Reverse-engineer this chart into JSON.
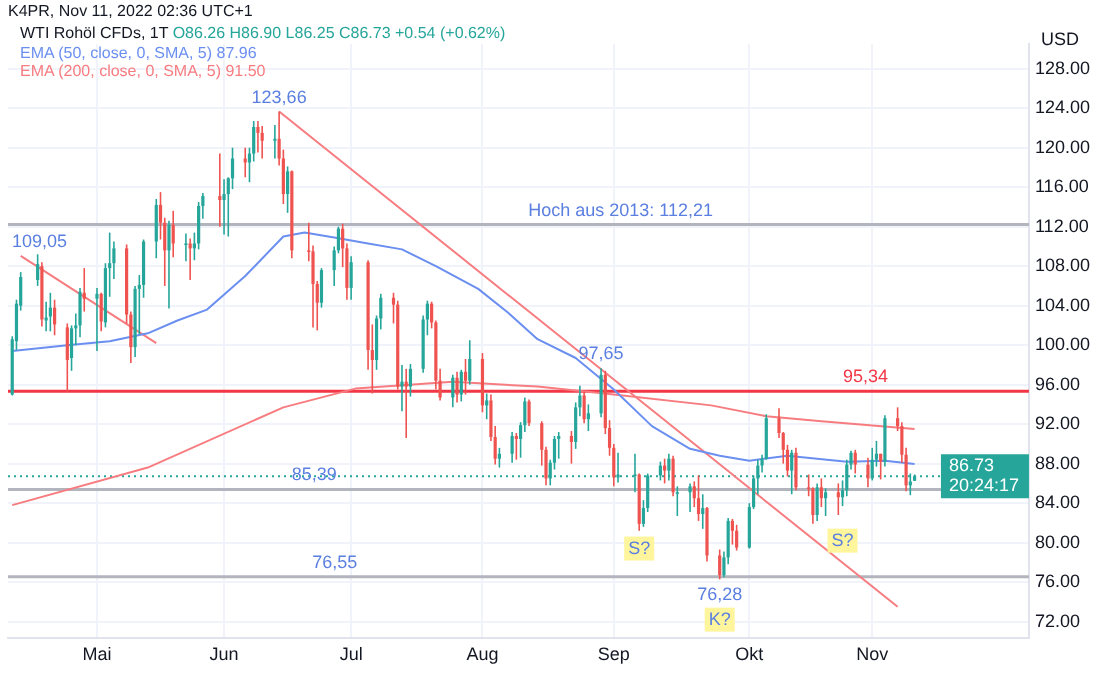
{
  "chart_data": {
    "type": "candlestick",
    "title": "WTI Rohöl CFDs, 1T",
    "subtitle": "O86.26 H86.90 L86.25 C86.73 +0.54 (+0.62%)",
    "ylabel": "USD",
    "xlim": [
      "2022-04-11",
      "2022-12-08"
    ],
    "xticks": [
      {
        "value": "2022-05-02",
        "label": "Mai"
      },
      {
        "value": "2022-06-01",
        "label": "Jun"
      },
      {
        "value": "2022-07-01",
        "label": "Jul"
      },
      {
        "value": "2022-08-01",
        "label": "Aug"
      },
      {
        "value": "2022-09-01",
        "label": "Sep"
      },
      {
        "value": "2022-10-03",
        "label": "Okt"
      },
      {
        "value": "2022-11-01",
        "label": "Nov"
      }
    ],
    "ylim": [
      70.3,
      130.5
    ],
    "yticks": [
      {
        "value": 72,
        "label": "72.00"
      },
      {
        "value": 76,
        "label": "76.00"
      },
      {
        "value": 80,
        "label": "80.00"
      },
      {
        "value": 84,
        "label": "84.00"
      },
      {
        "value": 88,
        "label": "88.00"
      },
      {
        "value": 92,
        "label": "92.00"
      },
      {
        "value": 96,
        "label": "96.00"
      },
      {
        "value": 100,
        "label": "100.00"
      },
      {
        "value": 104,
        "label": "104.00"
      },
      {
        "value": 108,
        "label": "108.00"
      },
      {
        "value": 112,
        "label": "112.00"
      },
      {
        "value": 116,
        "label": "116.00"
      },
      {
        "value": 120,
        "label": "120.00"
      },
      {
        "value": 124,
        "label": "124.00"
      },
      {
        "value": 128,
        "label": "128.00"
      }
    ],
    "grid": true,
    "legend": "top left",
    "series": [
      {
        "type": "line",
        "name": "EMA (50, close, 0, SMA, 5) 87.96",
        "color": "#6b8ff0",
        "x": [
          "2022-04-12",
          "2022-04-25",
          "2022-05-05",
          "2022-05-14",
          "2022-05-21",
          "2022-05-28",
          "2022-06-06",
          "2022-06-15",
          "2022-06-20",
          "2022-06-27",
          "2022-07-05",
          "2022-07-13",
          "2022-07-21",
          "2022-07-31",
          "2022-08-07",
          "2022-08-14",
          "2022-08-23",
          "2022-09-01",
          "2022-09-10",
          "2022-09-19",
          "2022-09-26",
          "2022-10-03",
          "2022-10-12",
          "2022-10-19",
          "2022-10-26",
          "2022-11-04",
          "2022-11-11"
        ],
        "values": [
          99.4,
          100.0,
          100.4,
          101.2,
          102.5,
          103.6,
          107.0,
          111.0,
          111.4,
          110.9,
          110.3,
          109.7,
          108.0,
          105.7,
          103.3,
          100.6,
          98.7,
          95.5,
          91.8,
          89.5,
          88.8,
          88.3,
          88.8,
          88.5,
          88.2,
          88.3,
          87.96
        ]
      },
      {
        "type": "line",
        "name": "EMA (200, close, 0, SMA, 5) 91.50",
        "color": "#f77c80",
        "x": [
          "2022-04-12",
          "2022-05-14",
          "2022-06-15",
          "2022-07-02",
          "2022-07-25",
          "2022-08-14",
          "2022-09-01",
          "2022-09-24",
          "2022-10-07",
          "2022-10-20",
          "2022-11-11"
        ],
        "values": [
          83.8,
          87.6,
          93.7,
          95.6,
          96.3,
          95.8,
          95.0,
          93.9,
          92.8,
          92.3,
          91.5
        ]
      },
      {
        "type": "line",
        "color": "#f77c80",
        "x": [
          "2022-04-14",
          "2022-05-16"
        ],
        "values": [
          109.05,
          100.2
        ]
      },
      {
        "type": "line",
        "color": "#f77c80",
        "x": [
          "2022-06-14",
          "2022-11-07"
        ],
        "values": [
          123.66,
          73.5
        ]
      }
    ],
    "x": [
      "2022-04-12",
      "2022-04-13",
      "2022-04-14",
      "2022-04-18",
      "2022-04-19",
      "2022-04-20",
      "2022-04-21",
      "2022-04-22",
      "2022-04-25",
      "2022-04-26",
      "2022-04-27",
      "2022-04-28",
      "2022-04-29",
      "2022-05-02",
      "2022-05-03",
      "2022-05-04",
      "2022-05-05",
      "2022-05-06",
      "2022-05-09",
      "2022-05-10",
      "2022-05-11",
      "2022-05-12",
      "2022-05-13",
      "2022-05-16",
      "2022-05-17",
      "2022-05-18",
      "2022-05-19",
      "2022-05-20",
      "2022-05-23",
      "2022-05-24",
      "2022-05-25",
      "2022-05-26",
      "2022-05-27",
      "2022-05-31",
      "2022-06-01",
      "2022-06-02",
      "2022-06-03",
      "2022-06-06",
      "2022-06-07",
      "2022-06-08",
      "2022-06-09",
      "2022-06-10",
      "2022-06-13",
      "2022-06-14",
      "2022-06-15",
      "2022-06-16",
      "2022-06-17",
      "2022-06-21",
      "2022-06-22",
      "2022-06-23",
      "2022-06-24",
      "2022-06-27",
      "2022-06-28",
      "2022-06-29",
      "2022-06-30",
      "2022-07-01",
      "2022-07-05",
      "2022-07-06",
      "2022-07-07",
      "2022-07-08",
      "2022-07-11",
      "2022-07-12",
      "2022-07-13",
      "2022-07-14",
      "2022-07-15",
      "2022-07-18",
      "2022-07-19",
      "2022-07-20",
      "2022-07-21",
      "2022-07-22",
      "2022-07-25",
      "2022-07-26",
      "2022-07-27",
      "2022-07-28",
      "2022-07-29",
      "2022-08-01",
      "2022-08-02",
      "2022-08-03",
      "2022-08-04",
      "2022-08-05",
      "2022-08-08",
      "2022-08-09",
      "2022-08-10",
      "2022-08-11",
      "2022-08-12",
      "2022-08-15",
      "2022-08-16",
      "2022-08-17",
      "2022-08-18",
      "2022-08-19",
      "2022-08-22",
      "2022-08-23",
      "2022-08-24",
      "2022-08-25",
      "2022-08-26",
      "2022-08-29",
      "2022-08-30",
      "2022-08-31",
      "2022-09-01",
      "2022-09-02",
      "2022-09-06",
      "2022-09-07",
      "2022-09-08",
      "2022-09-09",
      "2022-09-12",
      "2022-09-13",
      "2022-09-14",
      "2022-09-15",
      "2022-09-16",
      "2022-09-19",
      "2022-09-20",
      "2022-09-21",
      "2022-09-22",
      "2022-09-23",
      "2022-09-26",
      "2022-09-27",
      "2022-09-28",
      "2022-09-29",
      "2022-09-30",
      "2022-10-03",
      "2022-10-04",
      "2022-10-05",
      "2022-10-06",
      "2022-10-07",
      "2022-10-10",
      "2022-10-11",
      "2022-10-12",
      "2022-10-13",
      "2022-10-14",
      "2022-10-17",
      "2022-10-18",
      "2022-10-19",
      "2022-10-20",
      "2022-10-21",
      "2022-10-24",
      "2022-10-25",
      "2022-10-26",
      "2022-10-27",
      "2022-10-28",
      "2022-10-31",
      "2022-11-01",
      "2022-11-02",
      "2022-11-03",
      "2022-11-04",
      "2022-11-07",
      "2022-11-08",
      "2022-11-09",
      "2022-11-10",
      "2022-11-11"
    ],
    "ohlc": [
      [
        95.0,
        100.9,
        94.9,
        100.6
      ],
      [
        100.4,
        104.6,
        99.5,
        104.2
      ],
      [
        104.0,
        107.4,
        103.5,
        106.9
      ],
      [
        106.6,
        109.2,
        106.0,
        108.2
      ],
      [
        108.0,
        108.4,
        101.9,
        102.6
      ],
      [
        102.5,
        104.4,
        101.4,
        102.8
      ],
      [
        102.9,
        105.3,
        101.4,
        103.8
      ],
      [
        103.8,
        104.6,
        101.0,
        102.1
      ],
      [
        101.8,
        102.2,
        95.3,
        98.5
      ],
      [
        98.7,
        102.0,
        97.4,
        101.7
      ],
      [
        101.7,
        103.2,
        100.0,
        102.0
      ],
      [
        102.0,
        105.8,
        100.8,
        105.4
      ],
      [
        105.3,
        107.8,
        103.4,
        104.7
      ],
      [
        104.7,
        105.8,
        99.4,
        105.2
      ],
      [
        105.2,
        105.3,
        101.4,
        102.4
      ],
      [
        102.3,
        108.3,
        101.8,
        107.8
      ],
      [
        107.8,
        111.4,
        104.9,
        108.3
      ],
      [
        108.3,
        110.5,
        106.7,
        109.8
      ],
      [
        109.8,
        110.2,
        102.2,
        103.1
      ],
      [
        103.1,
        103.4,
        98.2,
        99.8
      ],
      [
        99.8,
        106.0,
        98.8,
        105.7
      ],
      [
        105.7,
        107.1,
        101.1,
        106.1
      ],
      [
        106.1,
        110.7,
        104.8,
        110.5
      ],
      [
        110.5,
        114.8,
        108.8,
        114.2
      ],
      [
        114.2,
        115.5,
        110.7,
        112.4
      ],
      [
        112.4,
        112.9,
        106.0,
        109.6
      ],
      [
        109.6,
        112.6,
        103.7,
        112.2
      ],
      [
        112.2,
        113.6,
        108.9,
        110.3
      ],
      [
        110.3,
        111.3,
        108.5,
        110.3
      ],
      [
        110.3,
        110.8,
        106.6,
        109.8
      ],
      [
        109.8,
        111.4,
        108.6,
        110.3
      ],
      [
        110.3,
        114.5,
        109.7,
        114.1
      ],
      [
        114.1,
        115.4,
        112.8,
        115.1
      ],
      [
        115.1,
        119.4,
        112.0,
        114.7
      ],
      [
        114.7,
        116.8,
        111.2,
        115.3
      ],
      [
        115.3,
        117.0,
        111.0,
        116.9
      ],
      [
        116.9,
        120.0,
        115.8,
        118.9
      ],
      [
        118.9,
        120.0,
        117.0,
        118.5
      ],
      [
        118.5,
        120.0,
        116.5,
        119.4
      ],
      [
        119.4,
        122.7,
        118.6,
        122.1
      ],
      [
        122.1,
        122.7,
        119.5,
        121.5
      ],
      [
        121.5,
        122.2,
        118.9,
        120.7
      ],
      [
        120.7,
        122.3,
        118.9,
        120.9
      ],
      [
        120.9,
        123.66,
        118.2,
        118.9
      ],
      [
        118.9,
        119.8,
        114.3,
        115.3
      ],
      [
        115.3,
        118.1,
        113.4,
        117.6
      ],
      [
        117.6,
        117.7,
        108.8,
        109.6
      ],
      [
        109.6,
        112.4,
        108.5,
        109.5
      ],
      [
        109.5,
        110.1,
        101.8,
        106.2
      ],
      [
        106.2,
        106.5,
        101.5,
        104.3
      ],
      [
        104.3,
        107.8,
        103.8,
        107.6
      ],
      [
        107.6,
        110.0,
        106.0,
        109.6
      ],
      [
        109.6,
        112.0,
        109.3,
        111.8
      ],
      [
        111.8,
        112.3,
        107.9,
        109.8
      ],
      [
        109.8,
        110.3,
        104.6,
        105.8
      ],
      [
        105.8,
        109.0,
        104.6,
        108.4
      ],
      [
        108.4,
        108.6,
        97.5,
        99.5
      ],
      [
        99.5,
        102.1,
        95.1,
        98.5
      ],
      [
        98.5,
        103.0,
        97.5,
        102.7
      ],
      [
        102.7,
        105.2,
        101.6,
        104.8
      ],
      [
        104.8,
        105.3,
        102.2,
        104.1
      ],
      [
        104.1,
        104.5,
        95.5,
        95.8
      ],
      [
        95.8,
        98.0,
        93.3,
        96.3
      ],
      [
        96.3,
        97.6,
        90.6,
        95.8
      ],
      [
        95.8,
        98.1,
        94.8,
        97.6
      ],
      [
        97.6,
        103.0,
        97.2,
        102.6
      ],
      [
        102.6,
        104.5,
        101.0,
        104.2
      ],
      [
        104.2,
        104.4,
        101.7,
        102.3
      ],
      [
        102.3,
        102.5,
        95.5,
        96.4
      ],
      [
        96.4,
        97.6,
        94.4,
        94.7
      ],
      [
        94.7,
        97.0,
        93.7,
        96.7
      ],
      [
        96.7,
        97.3,
        94.2,
        95.0
      ],
      [
        95.0,
        97.5,
        94.3,
        97.3
      ],
      [
        97.3,
        98.6,
        95.0,
        96.4
      ],
      [
        96.4,
        100.5,
        96.0,
        98.6
      ],
      [
        98.6,
        99.2,
        93.2,
        93.9
      ],
      [
        93.9,
        95.1,
        92.5,
        94.4
      ],
      [
        94.4,
        95.0,
        90.3,
        90.7
      ],
      [
        90.7,
        91.8,
        87.9,
        88.5
      ],
      [
        88.5,
        89.6,
        87.6,
        89.0
      ],
      [
        89.0,
        91.2,
        88.1,
        90.8
      ],
      [
        90.8,
        91.1,
        88.4,
        90.5
      ],
      [
        90.5,
        92.2,
        88.6,
        91.9
      ],
      [
        91.9,
        94.7,
        91.2,
        94.3
      ],
      [
        94.3,
        94.5,
        91.8,
        92.1
      ],
      [
        92.1,
        92.3,
        87.8,
        89.4
      ],
      [
        89.4,
        89.7,
        85.8,
        86.5
      ],
      [
        86.5,
        88.4,
        85.8,
        88.1
      ],
      [
        88.1,
        90.8,
        87.4,
        90.5
      ],
      [
        90.5,
        91.2,
        88.5,
        90.8
      ],
      [
        90.8,
        91.3,
        88.0,
        90.2
      ],
      [
        90.2,
        94.2,
        89.5,
        93.7
      ],
      [
        93.7,
        95.9,
        92.8,
        94.9
      ],
      [
        94.9,
        95.3,
        92.1,
        92.5
      ],
      [
        92.5,
        94.0,
        91.3,
        93.1
      ],
      [
        93.1,
        97.65,
        92.7,
        97.0
      ],
      [
        97.0,
        97.4,
        91.0,
        91.6
      ],
      [
        91.6,
        92.4,
        88.8,
        89.6
      ],
      [
        89.6,
        90.0,
        85.7,
        86.6
      ],
      [
        86.6,
        89.1,
        86.1,
        86.9
      ],
      [
        86.9,
        89.0,
        85.1,
        86.9
      ],
      [
        86.9,
        87.0,
        81.2,
        81.9
      ],
      [
        81.9,
        84.3,
        81.6,
        83.5
      ],
      [
        83.5,
        87.0,
        83.1,
        86.8
      ],
      [
        86.8,
        88.2,
        86.3,
        87.8
      ],
      [
        87.8,
        88.5,
        86.0,
        87.3
      ],
      [
        87.3,
        89.0,
        86.3,
        88.5
      ],
      [
        88.5,
        88.8,
        84.7,
        85.1
      ],
      [
        85.1,
        85.7,
        82.7,
        85.1
      ],
      [
        85.1,
        86.0,
        83.1,
        85.7
      ],
      [
        85.7,
        86.2,
        83.6,
        84.5
      ],
      [
        84.5,
        86.8,
        82.2,
        82.9
      ],
      [
        82.9,
        84.9,
        81.4,
        83.5
      ],
      [
        83.5,
        83.6,
        78.1,
        78.7
      ],
      [
        78.7,
        79.3,
        76.28,
        76.7
      ],
      [
        76.7,
        79.1,
        76.5,
        78.5
      ],
      [
        78.5,
        82.5,
        77.8,
        82.2
      ],
      [
        82.2,
        82.4,
        79.8,
        81.2
      ],
      [
        81.2,
        81.8,
        79.2,
        79.5
      ],
      [
        79.5,
        84.0,
        79.4,
        83.6
      ],
      [
        83.6,
        86.8,
        83.4,
        86.5
      ],
      [
        86.5,
        88.4,
        84.9,
        87.8
      ],
      [
        87.8,
        88.9,
        87.1,
        88.5
      ],
      [
        88.5,
        93.0,
        88.4,
        92.6
      ],
      [
        92.6,
        93.6,
        90.6,
        91.1
      ],
      [
        91.1,
        91.2,
        88.0,
        89.4
      ],
      [
        89.4,
        89.9,
        86.7,
        87.3
      ],
      [
        87.3,
        89.4,
        84.9,
        89.1
      ],
      [
        89.1,
        89.6,
        85.3,
        85.6
      ],
      [
        85.6,
        86.9,
        84.7,
        85.5
      ],
      [
        85.5,
        85.6,
        81.9,
        82.8
      ],
      [
        82.8,
        86.0,
        82.2,
        85.6
      ],
      [
        85.6,
        86.5,
        83.6,
        84.5
      ],
      [
        84.5,
        85.5,
        82.7,
        85.1
      ],
      [
        85.1,
        86.0,
        82.8,
        84.6
      ],
      [
        84.6,
        86.3,
        83.7,
        85.3
      ],
      [
        85.3,
        88.4,
        84.7,
        87.9
      ],
      [
        87.9,
        89.3,
        87.4,
        89.1
      ],
      [
        89.1,
        89.4,
        87.0,
        87.9
      ],
      [
        87.9,
        88.6,
        85.6,
        86.5
      ],
      [
        86.5,
        89.6,
        86.3,
        88.4
      ],
      [
        88.4,
        90.3,
        87.7,
        89.0
      ],
      [
        89.0,
        89.0,
        86.4,
        88.2
      ],
      [
        88.2,
        92.9,
        87.7,
        92.6
      ],
      [
        92.6,
        93.7,
        91.3,
        91.8
      ],
      [
        91.8,
        92.2,
        88.1,
        88.9
      ],
      [
        88.9,
        89.6,
        85.2,
        85.8
      ],
      [
        85.8,
        87.0,
        84.8,
        86.19
      ],
      [
        86.26,
        86.9,
        86.25,
        86.73
      ]
    ],
    "colors": [
      "#26a69a",
      "#26a69a",
      "#26a69a",
      "#26a69a",
      "#ef5350",
      "#26a69a",
      "#26a69a",
      "#ef5350",
      "#ef5350",
      "#26a69a",
      "#26a69a",
      "#26a69a",
      "#ef5350",
      "#26a69a",
      "#ef5350",
      "#26a69a",
      "#26a69a",
      "#26a69a",
      "#ef5350",
      "#ef5350",
      "#26a69a",
      "#26a69a",
      "#26a69a",
      "#26a69a",
      "#ef5350",
      "#ef5350",
      "#26a69a",
      "#ef5350",
      "#26a69a",
      "#ef5350",
      "#26a69a",
      "#26a69a",
      "#26a69a",
      "#ef5350",
      "#26a69a",
      "#26a69a",
      "#26a69a",
      "#ef5350",
      "#26a69a",
      "#26a69a",
      "#ef5350",
      "#ef5350",
      "#26a69a",
      "#ef5350",
      "#ef5350",
      "#26a69a",
      "#ef5350",
      "#ef5350",
      "#ef5350",
      "#ef5350",
      "#26a69a",
      "#26a69a",
      "#26a69a",
      "#ef5350",
      "#ef5350",
      "#26a69a",
      "#ef5350",
      "#ef5350",
      "#26a69a",
      "#26a69a",
      "#ef5350",
      "#ef5350",
      "#26a69a",
      "#ef5350",
      "#26a69a",
      "#26a69a",
      "#26a69a",
      "#ef5350",
      "#ef5350",
      "#ef5350",
      "#26a69a",
      "#ef5350",
      "#26a69a",
      "#ef5350",
      "#26a69a",
      "#ef5350",
      "#26a69a",
      "#ef5350",
      "#ef5350",
      "#26a69a",
      "#26a69a",
      "#ef5350",
      "#26a69a",
      "#26a69a",
      "#ef5350",
      "#ef5350",
      "#ef5350",
      "#26a69a",
      "#26a69a",
      "#26a69a",
      "#ef5350",
      "#26a69a",
      "#26a69a",
      "#ef5350",
      "#26a69a",
      "#26a69a",
      "#ef5350",
      "#ef5350",
      "#ef5350",
      "#26a69a",
      "#26a69a",
      "#ef5350",
      "#26a69a",
      "#26a69a",
      "#26a69a",
      "#ef5350",
      "#26a69a",
      "#ef5350",
      "#26a69a",
      "#26a69a",
      "#ef5350",
      "#ef5350",
      "#26a69a",
      "#ef5350",
      "#ef5350",
      "#26a69a",
      "#26a69a",
      "#ef5350",
      "#ef5350",
      "#26a69a",
      "#26a69a",
      "#26a69a",
      "#26a69a",
      "#26a69a",
      "#ef5350",
      "#ef5350",
      "#ef5350",
      "#26a69a",
      "#ef5350",
      "#ef5350",
      "#ef5350",
      "#26a69a",
      "#ef5350",
      "#26a69a",
      "#ef5350",
      "#26a69a",
      "#26a69a",
      "#26a69a",
      "#ef5350",
      "#ef5350",
      "#26a69a",
      "#26a69a",
      "#ef5350",
      "#26a69a",
      "#ef5350",
      "#ef5350",
      "#ef5350",
      "#26a69a",
      "#26a69a"
    ],
    "ref_lines": [
      {
        "axis": "y",
        "value": 112.21,
        "label": "Hoch aus 2013: 112,21",
        "color": "#b2b5be"
      },
      {
        "axis": "y",
        "value": 95.34,
        "label": "95,34",
        "color": "#f23645"
      },
      {
        "axis": "y",
        "value": 85.39,
        "label": "85,39",
        "color": "#b2b5be"
      },
      {
        "axis": "y",
        "value": 76.55,
        "label": "76,55",
        "color": "#b2b5be"
      },
      {
        "axis": "y",
        "value": 86.73,
        "label": "86.73",
        "color": "#26a69a",
        "line_style": "dotted"
      }
    ],
    "annotations": [
      "K4PR, Nov 11, 2022 02:36 UTC+1",
      "20:24:17",
      {
        "text": "123,66",
        "x": "2022-06-14",
        "y": 123.66
      },
      {
        "text": "109,05",
        "x": "2022-04-14",
        "y": 109.05
      },
      {
        "text": "97,65",
        "x": "2022-08-29",
        "y": 97.65
      },
      {
        "text": "76,28",
        "x": "2022-09-26",
        "y": 76.28
      },
      {
        "text": "S?",
        "x": "2022-09-07",
        "y": 79.4
      },
      {
        "text": "S?",
        "x": "2022-10-25",
        "y": 80.2
      },
      {
        "text": "K?",
        "x": "2022-09-26",
        "y": 72.2
      }
    ]
  }
}
